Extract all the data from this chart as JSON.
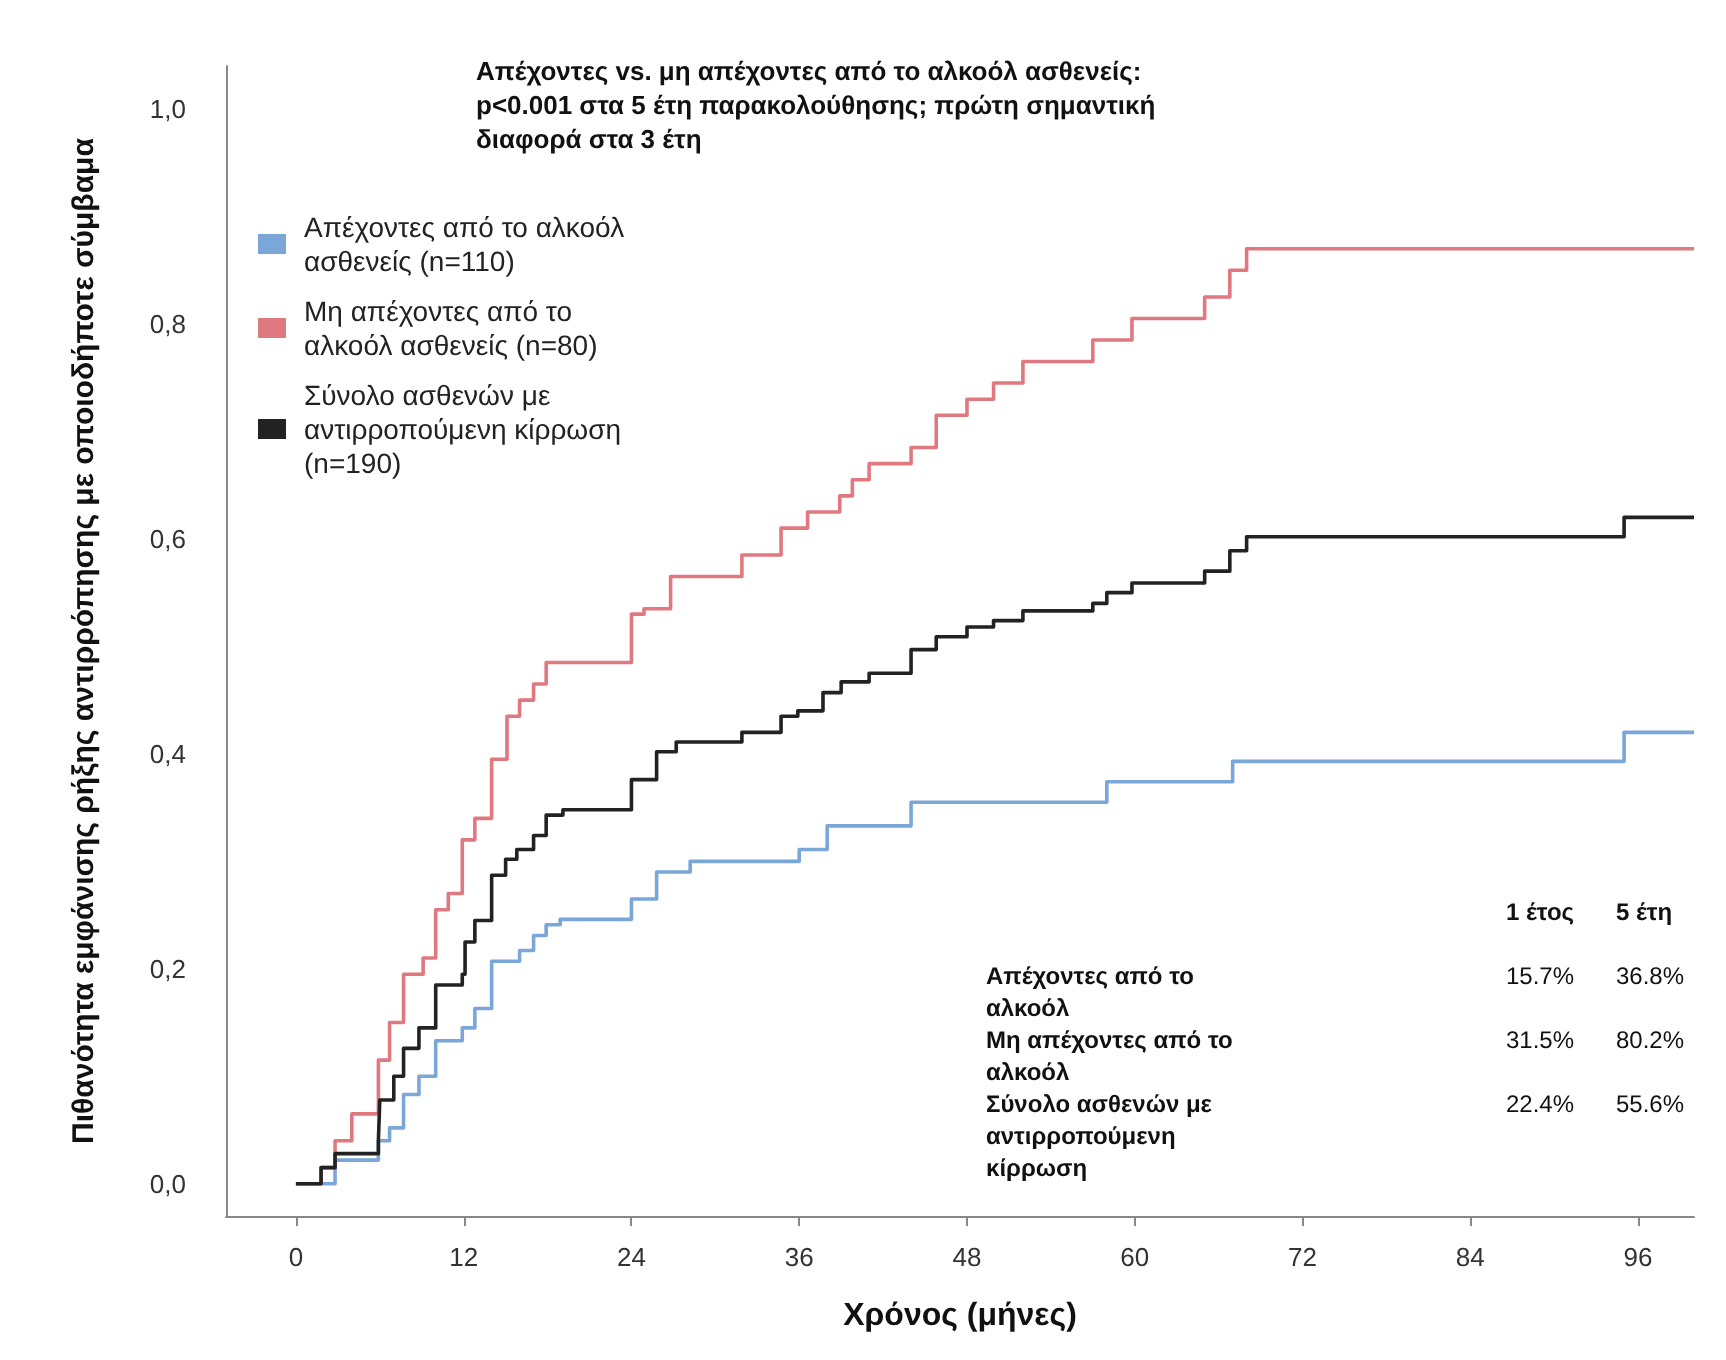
{
  "chart_data": {
    "type": "step",
    "title": "Απέχοντες vs. μη απέχοντες από το αλκοόλ ασθενείς: p<0.001 στα 5 έτη παρακολούθησης; πρώτη σημαντική διαφορά στα 3 έτη",
    "xlabel": "Χρόνος (μήνες)",
    "ylabel": "Πιθανότητα εμφάνισης ρήξης αντιρρόπησης με οποιοδήποτε σύμβαμα",
    "xlim": [
      -5,
      100
    ],
    "xticks": [
      0,
      12,
      24,
      36,
      48,
      60,
      72,
      84,
      96
    ],
    "ylim": [
      -0.03,
      1.04
    ],
    "yticks": [
      {
        "value": 0,
        "label": "0,0"
      },
      {
        "value": 0.2,
        "label": "0,2"
      },
      {
        "value": 0.4,
        "label": "0,4"
      },
      {
        "value": 0.6,
        "label": "0,6"
      },
      {
        "value": 0.8,
        "label": "0,8"
      },
      {
        "value": 1,
        "label": "1,0"
      }
    ],
    "grid": false,
    "legend": "top left",
    "marker": "none",
    "line_style": "solid",
    "series": [
      {
        "name": "Απέχοντες από το αλκοόλ ασθενείς (n=110)",
        "color": "#7aa6d8",
        "x": [
          0,
          2.8,
          5.9,
          6.7,
          7.7,
          8.8,
          10,
          11.9,
          12.8,
          14,
          16,
          17,
          17.9,
          18.9,
          24,
          25.8,
          28.2,
          36,
          38,
          44,
          58,
          67,
          95,
          100
        ],
        "values": [
          0,
          0.022,
          0.04,
          0.052,
          0.083,
          0.1,
          0.133,
          0.145,
          0.163,
          0.207,
          0.217,
          0.231,
          0.241,
          0.246,
          0.265,
          0.29,
          0.3,
          0.311,
          0.333,
          0.355,
          0.374,
          0.393,
          0.42,
          0.42
        ]
      },
      {
        "name": "Μη απέχοντες από το αλκοόλ ασθενείς (n=80)",
        "color": "#e07880",
        "x": [
          0,
          1.8,
          2.8,
          4,
          5.9,
          6.7,
          7.7,
          9.1,
          10,
          10.9,
          11.9,
          12.8,
          14,
          15.1,
          16,
          17,
          17.9,
          24,
          24.9,
          26.8,
          31.9,
          34.7,
          36.6,
          38,
          38.9,
          39.8,
          41,
          44,
          45.8,
          48,
          49.9,
          52,
          57,
          59.8,
          65,
          66.8,
          68,
          100
        ],
        "values": [
          0,
          0.015,
          0.04,
          0.065,
          0.115,
          0.15,
          0.195,
          0.21,
          0.255,
          0.27,
          0.32,
          0.34,
          0.395,
          0.435,
          0.45,
          0.465,
          0.485,
          0.53,
          0.535,
          0.565,
          0.585,
          0.61,
          0.625,
          0.625,
          0.64,
          0.655,
          0.67,
          0.685,
          0.715,
          0.73,
          0.745,
          0.765,
          0.785,
          0.805,
          0.825,
          0.85,
          0.87,
          0.87
        ]
      },
      {
        "name": "Σύνολο ασθενών με αντιρροπούμενη κίρρωση (n=190)",
        "color": "#222222",
        "x": [
          0,
          1.8,
          2.8,
          5.9,
          6,
          7,
          7.7,
          8.8,
          10,
          11.9,
          12.1,
          12.8,
          14,
          15,
          15.8,
          17,
          17.9,
          19.1,
          24,
          25.8,
          27.2,
          31.9,
          34.7,
          35.9,
          37.7,
          39,
          41,
          44,
          45.8,
          48,
          49.9,
          52,
          57,
          58,
          59.8,
          65,
          66.8,
          68,
          95,
          100
        ],
        "values": [
          0,
          0.015,
          0.028,
          0.04,
          0.078,
          0.1,
          0.126,
          0.145,
          0.185,
          0.195,
          0.225,
          0.245,
          0.287,
          0.302,
          0.311,
          0.324,
          0.343,
          0.348,
          0.376,
          0.402,
          0.411,
          0.42,
          0.435,
          0.44,
          0.457,
          0.467,
          0.475,
          0.497,
          0.509,
          0.518,
          0.524,
          0.533,
          0.54,
          0.55,
          0.559,
          0.57,
          0.589,
          0.602,
          0.62,
          0.62
        ]
      }
    ],
    "annotations": [
      "1 έτος",
      "5 έτη",
      "Απέχοντες από το αλκοόλ",
      "15.7%",
      "36.8%",
      "Μη απέχοντες από το αλκοόλ",
      "31.5%",
      "80.2%",
      "Σύνολο ασθενών με αντιρροπούμενη κίρρωση",
      "22.4%",
      "55.6%"
    ]
  }
}
